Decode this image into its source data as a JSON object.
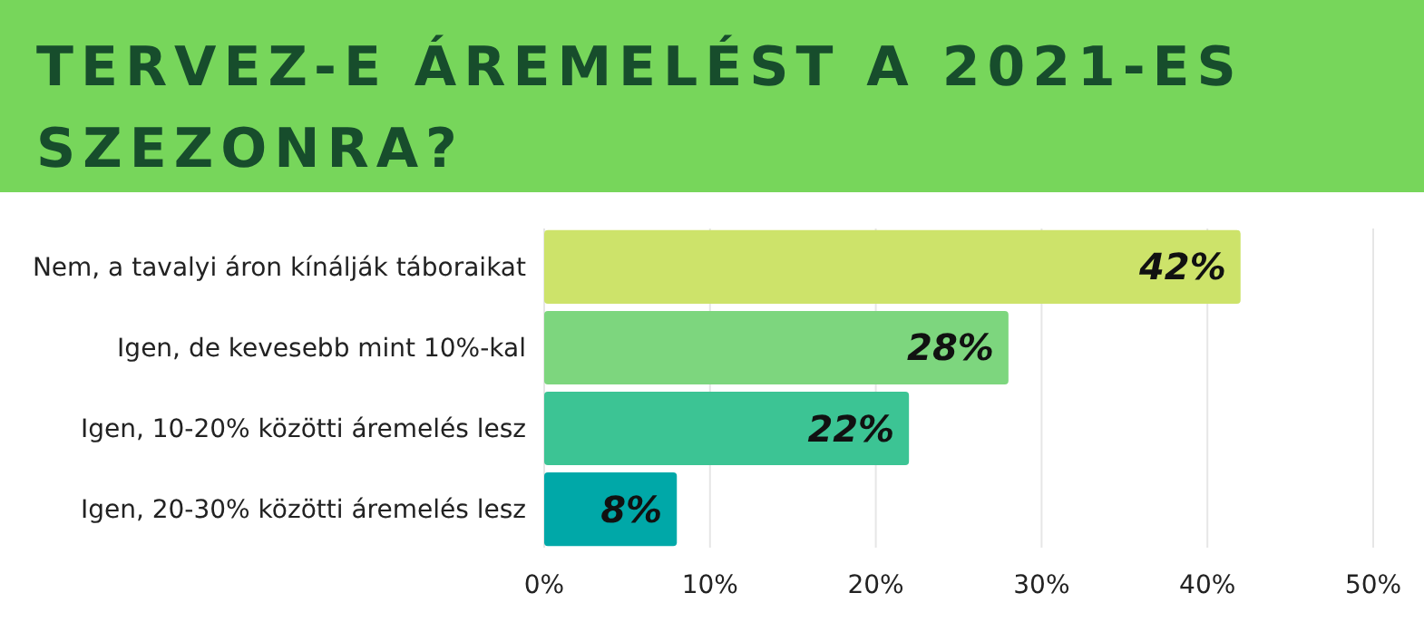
{
  "chart_data": {
    "type": "bar",
    "orientation": "horizontal",
    "title": "TERVEZ-E ÁREMELÉST A 2021-ES SZEZONRA?",
    "categories": [
      "Nem, a tavalyi áron kínálják táboraikat",
      "Igen, de kevesebb mint 10%-kal",
      "Igen, 10-20% közötti áremelés lesz",
      "Igen, 20-30% közötti áremelés lesz"
    ],
    "values": [
      42,
      28,
      22,
      8
    ],
    "colors": [
      "#cde36a",
      "#7dd67e",
      "#3cc494",
      "#00a8a8"
    ],
    "value_labels": [
      "42%",
      "28%",
      "22%",
      "8%"
    ],
    "xlim": [
      0,
      50
    ],
    "xticks": [
      {
        "value": 0,
        "label": "0%"
      },
      {
        "value": 10,
        "label": "10%"
      },
      {
        "value": 20,
        "label": "20%"
      },
      {
        "value": 30,
        "label": "30%"
      },
      {
        "value": 40,
        "label": "40%"
      },
      {
        "value": 50,
        "label": "50%"
      }
    ],
    "grid": "x"
  }
}
